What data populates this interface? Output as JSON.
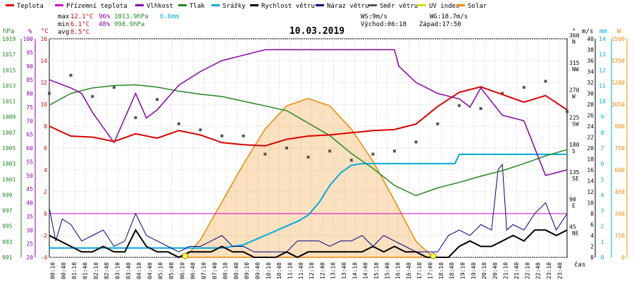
{
  "chart_data": {
    "type": "line",
    "title": "10.03.2019",
    "xlabel": "čas",
    "legend": [
      {
        "label": "Teplota",
        "color": "#dd0000"
      },
      {
        "label": "Přízemní teplota",
        "color": "#cc00cc"
      },
      {
        "label": "Vlhkost",
        "color": "#8800aa"
      },
      {
        "label": "Tlak",
        "color": "#228822"
      },
      {
        "label": "Srážky",
        "color": "#00aadd"
      },
      {
        "label": "Rychlost větru",
        "color": "#000000"
      },
      {
        "label": "Náraz větru",
        "color": "#000088"
      },
      {
        "label": "Směr větru",
        "color": "#555555"
      },
      {
        "label": "UV index",
        "color": "#dddd00"
      },
      {
        "label": "Solar",
        "color": "#ee8800"
      }
    ],
    "stats": {
      "max_label": "max",
      "max_temp": "12.1°C",
      "max_hum": "96%",
      "max_press": "1013.9hPa",
      "precip": "6.6mm",
      "min_label": "min",
      "min_temp": "6.1°C",
      "min_hum": "48%",
      "min_press": "998.9hPa",
      "avg_label": "avg",
      "avg_temp": "8.5°C"
    },
    "info": {
      "ws": "WS:9m/s",
      "wg": "WG:18.7m/s",
      "sunrise": "Východ:06:18",
      "sunset": "Západ:17:50"
    },
    "axes": {
      "hpa_title": "hPa",
      "pct_title": "%",
      "c_title": "°C",
      "dir_title": "°",
      "ms_title": "m/s",
      "mm_title": "mm",
      "w_title": "W",
      "hpa": [
        "1019",
        "1017",
        "1015",
        "1013",
        "1011",
        "1009",
        "1007",
        "1005",
        "1003",
        "1001",
        "999",
        "997",
        "995",
        "993",
        "991"
      ],
      "pct": [
        "100",
        "95",
        "90",
        "85",
        "80",
        "75",
        "70",
        "65",
        "60",
        "55",
        "50",
        "45",
        "40",
        "35",
        "30",
        "25",
        "20"
      ],
      "temp": [
        "16",
        "14",
        "12",
        "10",
        "8",
        "6",
        "4",
        "2",
        "0",
        "-2",
        "-4"
      ],
      "dir": [
        [
          "360",
          "N"
        ],
        [
          "315",
          "NW"
        ],
        [
          "270",
          "W"
        ],
        [
          "225",
          "SW"
        ],
        [
          "180",
          "S"
        ],
        [
          "135",
          "SE"
        ],
        [
          "90",
          "E"
        ],
        [
          "45",
          "NE"
        ]
      ],
      "ms": [
        "40",
        "38",
        "36",
        "34",
        "32",
        "30",
        "28",
        "26",
        "24",
        "22",
        "20",
        "18",
        "16",
        "14",
        "12",
        "10",
        "8",
        "6",
        "4",
        "2",
        "0"
      ],
      "mm": [
        "14",
        "13",
        "12",
        "11",
        "10",
        "9",
        "8",
        "7",
        "6",
        "5",
        "4",
        "3",
        "2",
        "1",
        "0"
      ],
      "w": [
        "1500",
        "1350",
        "1200",
        "1050",
        "900",
        "750",
        "600",
        "450",
        "300",
        "150",
        "0"
      ],
      "x": [
        "00:10",
        "00:40",
        "01:10",
        "01:40",
        "02:10",
        "02:40",
        "03:10",
        "03:40",
        "04:10",
        "04:40",
        "05:10",
        "05:40",
        "06:10",
        "06:40",
        "07:10",
        "07:40",
        "08:10",
        "08:40",
        "09:10",
        "09:40",
        "10:10",
        "10:40",
        "11:10",
        "11:40",
        "12:10",
        "12:40",
        "13:10",
        "13:40",
        "14:10",
        "14:40",
        "15:10",
        "15:40",
        "16:10",
        "16:40",
        "17:10",
        "17:40",
        "18:10",
        "18:40",
        "19:10",
        "19:40",
        "20:10",
        "20:40",
        "21:10",
        "21:40",
        "22:10",
        "22:40",
        "23:10",
        "23:40"
      ]
    },
    "series": [
      {
        "name": "Teplota",
        "unit": "°C",
        "x": [
          0,
          1,
          2,
          3,
          4,
          5,
          6,
          7,
          8,
          9,
          10,
          11,
          12,
          13,
          14,
          15,
          16,
          17,
          18,
          19,
          20,
          21,
          22,
          23,
          24
        ],
        "values": [
          8.0,
          7.1,
          7.0,
          6.6,
          7.3,
          6.9,
          7.6,
          7.2,
          6.5,
          6.3,
          6.2,
          6.8,
          7.1,
          7.2,
          7.4,
          7.6,
          7.7,
          8.2,
          9.8,
          11.1,
          11.6,
          10.9,
          10.2,
          10.8,
          9.5
        ]
      },
      {
        "name": "Přízemní teplota",
        "unit": "°C",
        "x": [
          0,
          24
        ],
        "values": [
          0,
          0
        ]
      },
      {
        "name": "Vlhkost",
        "unit": "%",
        "x": [
          0,
          1,
          1.5,
          2,
          3,
          4,
          4.5,
          5,
          6,
          7,
          8,
          9,
          10,
          12,
          14,
          16,
          16.2,
          17,
          18,
          19,
          19.5,
          20,
          21,
          22,
          23,
          24
        ],
        "values": [
          85,
          82,
          80,
          73,
          62,
          80,
          71,
          74,
          83,
          88,
          92,
          94,
          96,
          96,
          96,
          96,
          90,
          84,
          80,
          78,
          75,
          82,
          72,
          70,
          50,
          52
        ]
      },
      {
        "name": "Tlak",
        "unit": "hPa",
        "x": [
          0,
          1,
          2,
          3,
          4,
          5,
          6,
          7,
          8,
          9,
          10,
          11,
          12,
          13,
          14,
          15,
          16,
          17,
          18,
          19,
          20,
          21,
          22,
          23,
          24
        ],
        "values": [
          1010.5,
          1012.0,
          1012.7,
          1013.0,
          1013.1,
          1012.8,
          1012.3,
          1011.9,
          1011.6,
          1011.0,
          1010.4,
          1009.8,
          1008.2,
          1006.6,
          1004.3,
          1002.4,
          1000.2,
          998.9,
          999.9,
          1000.6,
          1001.4,
          1002.1,
          1003.0,
          1004.0,
          1004.8
        ]
      },
      {
        "name": "Srážky",
        "unit": "mm",
        "x": [
          0,
          6,
          7,
          8,
          9,
          9.5,
          10,
          10.5,
          11,
          11.5,
          12,
          12.5,
          13,
          13.5,
          14,
          14.5,
          15,
          15.5,
          16,
          17,
          18,
          18.8,
          19,
          24
        ],
        "values": [
          0.6,
          0.6,
          0.6,
          0.6,
          0.8,
          1.1,
          1.4,
          1.7,
          2.0,
          2.3,
          2.7,
          3.5,
          4.6,
          5.4,
          5.9,
          6.0,
          6.0,
          6.0,
          6.0,
          6.0,
          6.0,
          6.0,
          6.6,
          6.6
        ]
      },
      {
        "name": "Rychlost větru",
        "unit": "m/s",
        "x": [
          0,
          0.5,
          1,
          1.5,
          2,
          2.5,
          3,
          3.5,
          4,
          4.5,
          5,
          5.5,
          6,
          6.5,
          7,
          7.5,
          8,
          8.5,
          9,
          9.5,
          10,
          10.5,
          11,
          11.5,
          12,
          12.5,
          13,
          13.5,
          14,
          14.5,
          15,
          15.5,
          16,
          16.5,
          17,
          17.5,
          18,
          18.5,
          19,
          19.5,
          20,
          20.5,
          21,
          21.5,
          22,
          22.5,
          23,
          23.5,
          24
        ],
        "values": [
          4,
          3,
          2,
          1,
          1,
          2,
          1,
          1,
          5,
          2,
          1,
          1,
          0,
          1,
          1,
          1,
          2,
          1,
          1,
          0,
          0,
          0,
          1,
          0,
          1,
          1,
          1,
          1,
          1,
          1,
          2,
          1,
          2,
          1,
          1,
          0,
          0,
          0,
          2,
          3,
          2,
          2,
          3,
          4,
          3,
          5,
          5,
          4,
          5
        ]
      },
      {
        "name": "Náraz větru",
        "unit": "m/s",
        "x": [
          0,
          0.3,
          0.6,
          1,
          1.5,
          2,
          2.5,
          3,
          3.5,
          4,
          4.5,
          5,
          5.5,
          6,
          6.5,
          7,
          7.5,
          8,
          8.5,
          9,
          9.5,
          10,
          10.5,
          11,
          11.5,
          12,
          12.5,
          13,
          13.5,
          14,
          14.5,
          15,
          15.5,
          16,
          16.5,
          17,
          17.5,
          18,
          18.5,
          19,
          19.5,
          20,
          20.5,
          20.8,
          21,
          21.2,
          21.5,
          22,
          22.5,
          23,
          23.5,
          24
        ],
        "values": [
          9,
          3,
          7,
          6,
          3,
          4,
          5,
          2,
          3,
          8,
          4,
          3,
          2,
          1,
          2,
          2,
          3,
          4,
          2,
          2,
          1,
          1,
          1,
          1,
          3,
          3,
          3,
          2,
          3,
          3,
          4,
          2,
          4,
          3,
          2,
          1,
          1,
          1,
          4,
          5,
          4,
          6,
          5,
          16,
          17,
          5,
          6,
          5,
          8,
          10,
          5,
          8
        ]
      },
      {
        "name": "Směr větru",
        "unit": "°",
        "x": [
          0,
          1,
          2,
          3,
          4,
          5,
          6,
          7,
          8,
          9,
          10,
          11,
          12,
          13,
          14,
          15,
          16,
          17,
          18,
          19,
          20,
          21,
          22,
          23,
          24
        ],
        "values": [
          270,
          300,
          265,
          280,
          230,
          260,
          220,
          210,
          200,
          200,
          170,
          180,
          165,
          175,
          160,
          170,
          175,
          190,
          220,
          250,
          245,
          270,
          280,
          290,
          240
        ]
      },
      {
        "name": "UV index",
        "unit": "",
        "x": [
          6.3,
          17.8
        ],
        "values": [
          0,
          0
        ]
      },
      {
        "name": "Solar",
        "unit": "W",
        "x": [
          6.3,
          7,
          8,
          9,
          10,
          11,
          12,
          13,
          14,
          15,
          16,
          17,
          17.8
        ],
        "values": [
          0,
          120,
          380,
          640,
          880,
          1040,
          1090,
          1040,
          880,
          660,
          390,
          110,
          0
        ]
      }
    ]
  }
}
